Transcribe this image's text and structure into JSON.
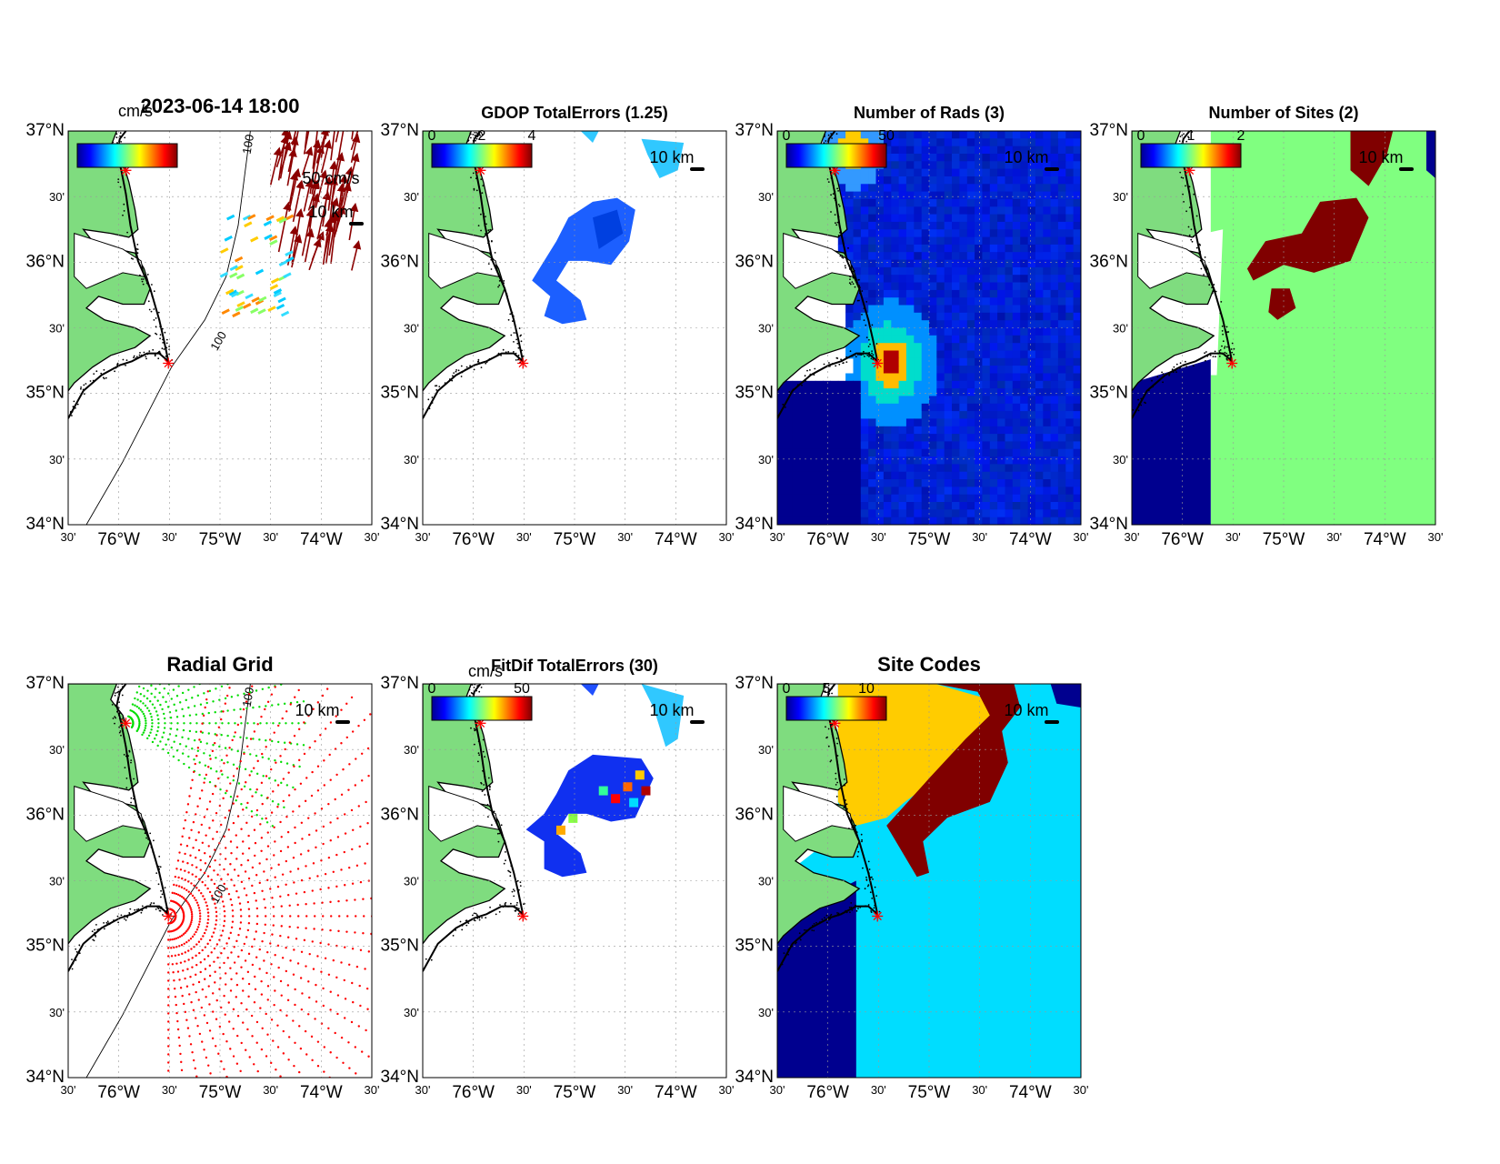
{
  "figure": {
    "timestamp": "2023-06-14 18:00",
    "lat_ticks": [
      "37°N",
      "30'",
      "36°N",
      "30'",
      "35°N",
      "30'",
      "34°N"
    ],
    "lon_ticks": [
      "30'",
      "76°W",
      "30'",
      "75°W",
      "30'",
      "74°W",
      "30'"
    ],
    "scale_bar": "10 km",
    "isobath": "100"
  },
  "panels": [
    {
      "id": "vectors",
      "title": "",
      "colorbar_unit": "cm/s",
      "colorbar_ticks": [],
      "vector_scale": "50 cm/s"
    },
    {
      "id": "gdop",
      "title": "GDOP TotalErrors (1.25)",
      "colorbar_unit": "",
      "colorbar_ticks": [
        "0",
        "2",
        "4"
      ]
    },
    {
      "id": "nrads",
      "title": "Number of Rads (3)",
      "colorbar_unit": "",
      "colorbar_ticks": [
        "0",
        "50"
      ]
    },
    {
      "id": "nsites",
      "title": "Number of Sites (2)",
      "colorbar_unit": "",
      "colorbar_ticks": [
        "0",
        "1",
        "2"
      ]
    },
    {
      "id": "radialgrid",
      "title": "Radial Grid",
      "colorbar_unit": "",
      "colorbar_ticks": []
    },
    {
      "id": "fitdif",
      "title": "FitDif TotalErrors (30)",
      "colorbar_unit": "cm/s",
      "colorbar_ticks": [
        "0",
        "50"
      ]
    },
    {
      "id": "sitecodes",
      "title": "Site Codes",
      "colorbar_unit": "",
      "colorbar_ticks": [
        "0",
        "5",
        "10"
      ]
    }
  ],
  "colors": {
    "land": "#7fdc7f",
    "jet_blue": "#00008f",
    "dark_red": "#800000",
    "light_green": "#80ff80",
    "gold": "#ffcc00",
    "cyan": "#00ddff",
    "site_a": "#00dd00",
    "site_b": "#ff0000",
    "site_marker": "#ff0000"
  }
}
